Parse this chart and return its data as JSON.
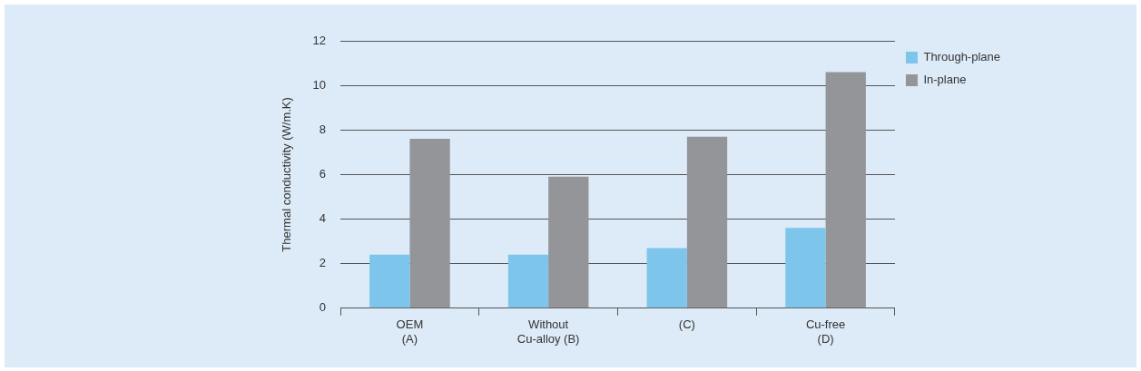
{
  "chart_data": {
    "type": "bar",
    "ylabel": "Thermal conductivity (W/m.K)",
    "categories": [
      "OEM\n(A)",
      "Without\nCu-alloy (B)",
      "(C)",
      "Cu-free\n(D)"
    ],
    "series": [
      {
        "name": "Through-plane",
        "color": "#7dc5ea",
        "values": [
          2.4,
          2.4,
          2.7,
          3.6
        ]
      },
      {
        "name": "In-plane",
        "color": "#949599",
        "values": [
          7.6,
          5.9,
          7.7,
          10.6
        ]
      }
    ],
    "ylim": [
      0,
      12
    ],
    "yticks": [
      0,
      2,
      4,
      6,
      8,
      10,
      12
    ],
    "grid": "y",
    "legend": "top right"
  }
}
